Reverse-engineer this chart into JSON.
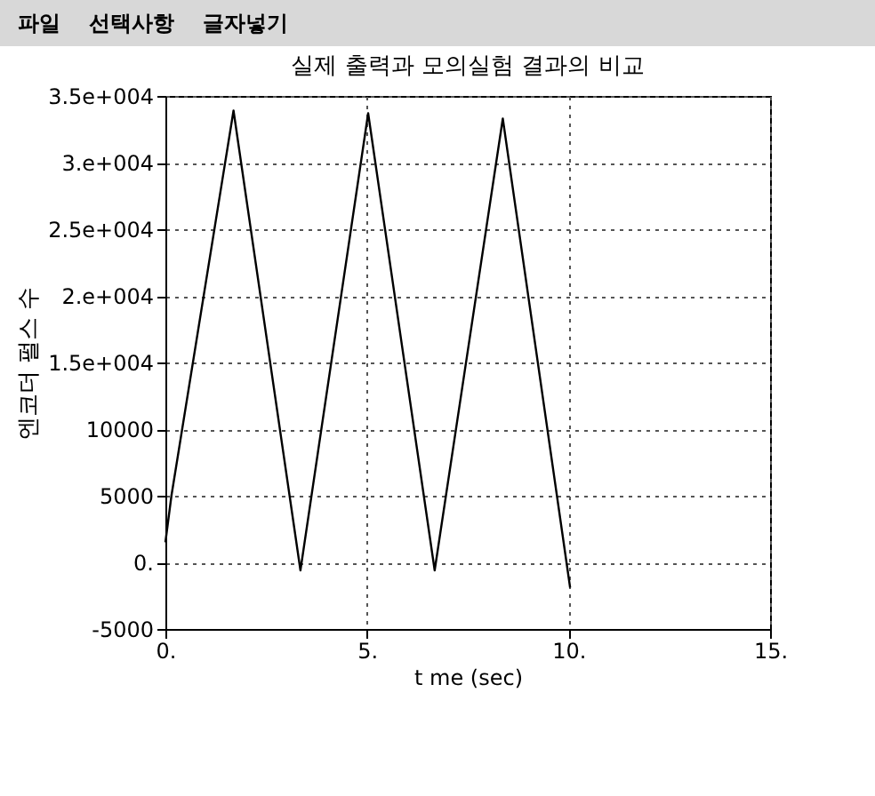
{
  "chart_data": {
    "type": "line",
    "title": "실제 출력과 모의실험 결과의 비교",
    "xlabel": "t me (sec)",
    "ylabel": "엔코더 펄스 수",
    "annotations": [
      "파일",
      "선택사항",
      "글자넣기"
    ],
    "x": [
      0,
      0.15,
      1.69,
      3.35,
      5.03,
      6.68,
      8.37,
      10.04
    ],
    "series": [
      {
        "color": "#000000",
        "values": [
          1500,
          5000,
          33900,
          -600,
          33700,
          -600,
          33300,
          -1900
        ]
      }
    ],
    "xlim": [
      0,
      15
    ],
    "xticks": [
      {
        "value": 0,
        "label": "0."
      },
      {
        "value": 5,
        "label": "5."
      },
      {
        "value": 10,
        "label": "10."
      },
      {
        "value": 15,
        "label": "15."
      }
    ],
    "ylim": [
      -5000,
      35000
    ],
    "yticks": [
      {
        "value": -5000,
        "label": "-5000"
      },
      {
        "value": 0,
        "label": "0."
      },
      5000,
      10000,
      {
        "value": 15000,
        "label": "1.5e+004"
      },
      {
        "value": 20000,
        "label": "2.e+004"
      },
      {
        "value": 25000,
        "label": "2.5e+004"
      },
      {
        "value": 30000,
        "label": "3.e+004"
      },
      {
        "value": 35000,
        "label": "3.5e+004"
      }
    ],
    "grid": true,
    "line_style": "solid",
    "marker": "none"
  }
}
